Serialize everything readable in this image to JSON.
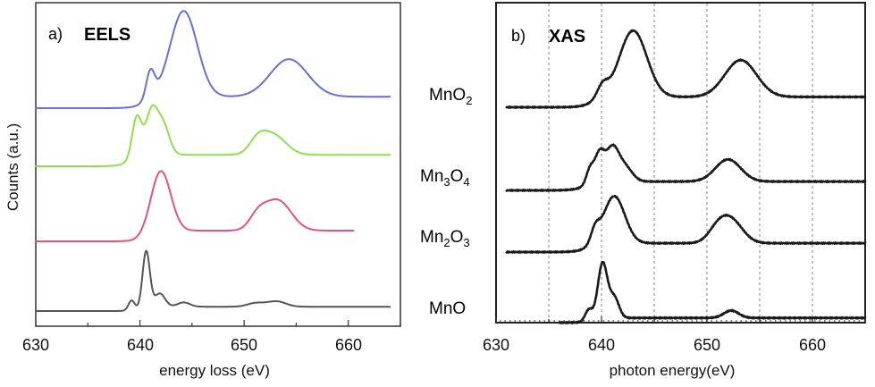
{
  "chart_data": [
    {
      "type": "line",
      "panel_tag": "a)",
      "title": "EELS",
      "xlabel": "energy loss (eV)",
      "ylabel": "Counts (a.u.)",
      "xlim": [
        630,
        665
      ],
      "x_ticks": [
        "630",
        "640",
        "650",
        "660"
      ],
      "grid": false,
      "series_labels_printed": false,
      "series": [
        {
          "key": "blue",
          "color": "#6470d6",
          "offset": 3,
          "x_range": [
            630.0,
            664.0
          ],
          "peaks": [
            {
              "x": 641.0,
              "h": 0.75,
              "w": 0.4
            },
            {
              "x": 644.2,
              "h": 2.4,
              "w": 1.3
            },
            {
              "x": 654.3,
              "h": 1.05,
              "w": 1.8
            }
          ],
          "step": {
            "x": 640.5,
            "h": 0.32
          }
        },
        {
          "key": "green",
          "color": "#8fe04a",
          "offset": 2,
          "x_range": [
            630.0,
            664.0
          ],
          "peaks": [
            {
              "x": 639.7,
              "h": 1.15,
              "w": 0.45
            },
            {
              "x": 641.1,
              "h": 1.2,
              "w": 0.55
            },
            {
              "x": 642.2,
              "h": 0.85,
              "w": 0.6
            },
            {
              "x": 651.3,
              "h": 0.35,
              "w": 0.8
            },
            {
              "x": 652.8,
              "h": 0.55,
              "w": 1.2
            }
          ],
          "step": {
            "x": 639.2,
            "h": 0.32
          }
        },
        {
          "key": "pink",
          "color": "#e8507e",
          "offset": 1,
          "x_range": [
            630.0,
            660.5
          ],
          "peaks": [
            {
              "x": 642.0,
              "h": 1.7,
              "w": 0.95
            },
            {
              "x": 651.3,
              "h": 0.35,
              "w": 0.8
            },
            {
              "x": 653.2,
              "h": 0.85,
              "w": 1.3
            }
          ],
          "step": {
            "x": 640.8,
            "h": 0.3
          }
        },
        {
          "key": "gray",
          "color": "#555555",
          "offset": 0,
          "x_range": [
            630.0,
            664.0
          ],
          "peaks": [
            {
              "x": 639.2,
              "h": 0.28,
              "w": 0.3
            },
            {
              "x": 640.6,
              "h": 1.6,
              "w": 0.35
            },
            {
              "x": 641.9,
              "h": 0.38,
              "w": 0.5
            },
            {
              "x": 644.2,
              "h": 0.12,
              "w": 0.6
            },
            {
              "x": 651.1,
              "h": 0.1,
              "w": 0.8
            },
            {
              "x": 653.1,
              "h": 0.15,
              "w": 0.9
            }
          ],
          "step": {
            "x": 640.3,
            "h": 0.12
          }
        }
      ]
    },
    {
      "type": "line",
      "panel_tag": "b)",
      "title": "XAS",
      "xlabel": "photon energy(eV)",
      "ylabel": "",
      "xlim": [
        630,
        665
      ],
      "x_ticks": [
        "630",
        "640",
        "650",
        "660"
      ],
      "grid": true,
      "series": [
        {
          "name": "MnO2",
          "label_base": "MnO",
          "label_sub": "2",
          "color": "#1a1a1a",
          "offset": 3,
          "x_range": [
            631.0,
            665.0
          ],
          "peaks": [
            {
              "x": 640.1,
              "h": 0.4,
              "w": 0.5
            },
            {
              "x": 643.0,
              "h": 2.25,
              "w": 1.3
            },
            {
              "x": 653.2,
              "h": 1.25,
              "w": 1.5
            }
          ],
          "step": {
            "x": 639.2,
            "h": 0.35
          }
        },
        {
          "name": "Mn3O4",
          "label_base": "Mn",
          "label_sub": "3",
          "label_rest": "O",
          "label_sub2": "4",
          "color": "#1a1a1a",
          "offset": 2,
          "x_range": [
            631.0,
            665.0
          ],
          "peaks": [
            {
              "x": 638.9,
              "h": 0.5,
              "w": 0.35
            },
            {
              "x": 639.8,
              "h": 0.95,
              "w": 0.45
            },
            {
              "x": 641.0,
              "h": 1.1,
              "w": 0.6
            },
            {
              "x": 642.2,
              "h": 0.5,
              "w": 0.7
            },
            {
              "x": 652.0,
              "h": 0.75,
              "w": 1.2
            }
          ],
          "step": {
            "x": 638.5,
            "h": 0.3
          }
        },
        {
          "name": "Mn2O3",
          "label_base": "Mn",
          "label_sub": "2",
          "label_rest": "O",
          "label_sub2": "3",
          "color": "#1a1a1a",
          "offset": 1,
          "x_range": [
            631.0,
            665.0
          ],
          "peaks": [
            {
              "x": 639.4,
              "h": 0.45,
              "w": 0.4
            },
            {
              "x": 641.2,
              "h": 1.6,
              "w": 1.0
            },
            {
              "x": 651.0,
              "h": 0.4,
              "w": 0.9
            },
            {
              "x": 652.3,
              "h": 0.75,
              "w": 1.1
            }
          ],
          "step": {
            "x": 638.8,
            "h": 0.3
          }
        },
        {
          "name": "MnO",
          "label_base": "MnO",
          "color": "#1a1a1a",
          "offset": 0,
          "x_range": [
            636.0,
            665.0
          ],
          "peaks": [
            {
              "x": 638.8,
              "h": 0.4,
              "w": 0.35
            },
            {
              "x": 640.1,
              "h": 1.9,
              "w": 0.45
            },
            {
              "x": 641.2,
              "h": 0.7,
              "w": 0.45
            },
            {
              "x": 652.3,
              "h": 0.25,
              "w": 0.7
            }
          ],
          "step": {
            "x": 639.5,
            "h": 0.16
          }
        }
      ]
    }
  ]
}
